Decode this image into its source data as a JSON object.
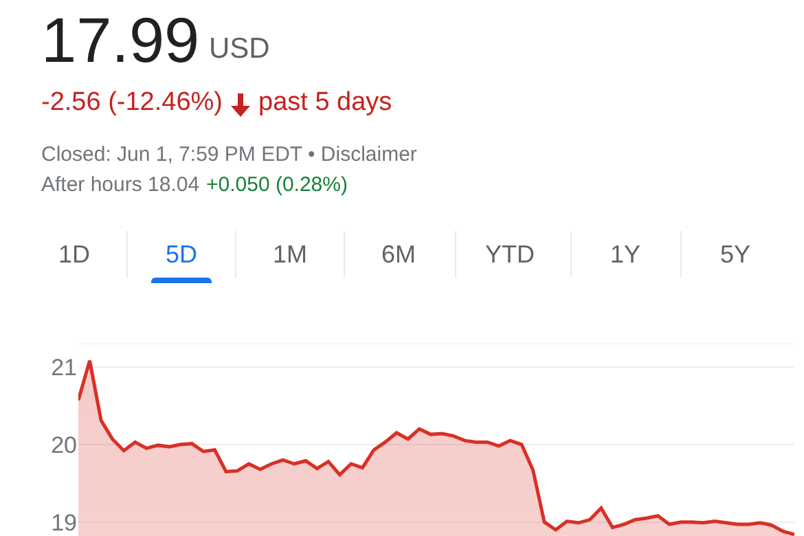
{
  "chart_data": {
    "type": "area",
    "title": "17.99",
    "annotations": [
      "USD",
      "-2.56 (-12.46%)",
      "past 5 days",
      "Closed: Jun 1, 7:59 PM EDT • Disclaimer",
      "After hours 18.04",
      "+0.050 (0.28%)",
      "1D",
      "5D",
      "1M",
      "6M",
      "YTD",
      "1Y",
      "5Y"
    ],
    "categories": [
      null,
      null,
      null,
      null,
      null,
      null,
      null,
      null,
      null,
      null,
      null,
      null,
      null,
      null,
      null,
      null,
      null,
      null,
      null,
      null,
      null,
      null,
      null,
      null,
      null,
      null,
      null,
      null,
      null,
      null,
      null,
      null,
      null,
      null,
      null,
      null,
      null,
      null,
      null,
      null,
      null,
      null,
      null,
      null,
      null,
      null,
      null,
      null,
      null,
      null,
      null,
      null,
      null,
      null,
      null,
      null,
      null,
      null,
      null,
      null,
      null,
      null,
      null,
      null
    ],
    "series": [
      {
        "color": "#d93025",
        "values": [
          20.57,
          21.08,
          20.31,
          20.07,
          19.92,
          20.03,
          19.95,
          19.99,
          19.97,
          20.0,
          20.01,
          19.91,
          19.93,
          19.65,
          19.66,
          19.75,
          19.68,
          19.75,
          19.8,
          19.75,
          19.79,
          19.69,
          19.78,
          19.61,
          19.75,
          19.7,
          19.93,
          20.03,
          20.15,
          20.07,
          20.2,
          20.13,
          20.14,
          20.11,
          20.05,
          20.03,
          20.03,
          19.98,
          20.05,
          20.0,
          19.67,
          19.0,
          18.9,
          19.01,
          18.99,
          19.03,
          19.18,
          18.93,
          18.97,
          19.03,
          19.05,
          19.08,
          18.97,
          19.0,
          19.0,
          18.99,
          19.01,
          18.99,
          18.97,
          18.97,
          18.99,
          18.96,
          18.88,
          18.84
        ]
      }
    ],
    "ylim": [
      18.82,
      21.3
    ],
    "yticks": [
      19,
      20,
      21
    ],
    "grid": "y",
    "tick_labels": "y"
  }
}
